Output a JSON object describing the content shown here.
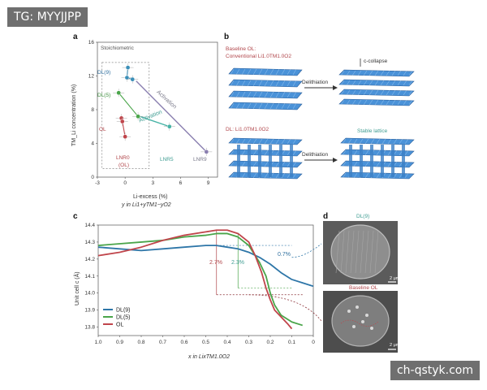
{
  "watermark_top": "TG: MYYJJPP",
  "watermark_bottom": "ch-qstyk.com",
  "panel_a": {
    "label": "a",
    "stoich_label": "Stoichiometric",
    "ylabel": "TM_Li concentration (%)",
    "xlabel": "Li-excess (%)",
    "xlabel2": "y in Li1+yTM1−yO2",
    "activation_1": "Activation",
    "activation_2": "Activation",
    "points": {
      "dl9": "DL(9)",
      "dl5": "DL(5)",
      "ol": "OL",
      "lnr0": "LNR0",
      "lnr0_sub": "(OL)",
      "lnr5": "LNR5",
      "lnr9": "LNR9"
    }
  },
  "panel_b": {
    "label": "b",
    "top_title1": "Baseline OL:",
    "top_title2": "Conventional Li1.0TM1.0O2",
    "delith_top": "Delithiation",
    "c_collapse": "c-collapse",
    "bottom_title": "DL: Li1.0TM1.0O2",
    "delith_bottom": "Delithiation",
    "stable": "Stable lattice"
  },
  "panel_c": {
    "label": "c",
    "ylabel": "Unit cell c (Å)",
    "xlabel": "x in LixTM1.0O2",
    "ann_27": "2.7%",
    "ann_23": "2.3%",
    "ann_07": "0.7%"
  },
  "panel_d": {
    "label": "d",
    "top_label": "DL(9)",
    "bottom_label": "Baseline OL",
    "scale_top": "2 μm",
    "scale_bottom": "2 μm"
  },
  "chart_data": [
    {
      "type": "scatter",
      "title": "",
      "xlabel": "Li-excess (%)",
      "ylabel": "TM_Li concentration (%)",
      "xlim": [
        -3,
        10
      ],
      "ylim": [
        0,
        16
      ],
      "xticks": [
        -3,
        0,
        3,
        6,
        9
      ],
      "yticks": [
        0,
        4,
        8,
        12,
        16
      ],
      "series": [
        {
          "name": "DL(9)",
          "color": "#3b8fb8",
          "points": [
            [
              0.3,
              13.0
            ],
            [
              0.2,
              11.8
            ],
            [
              0.8,
              11.6
            ]
          ]
        },
        {
          "name": "DL(5)",
          "color": "#4aa54a",
          "points": [
            [
              -0.7,
              10.0
            ],
            [
              1.4,
              7.2
            ]
          ]
        },
        {
          "name": "OL",
          "color": "#c0454b",
          "points": [
            [
              -0.4,
              7.0
            ],
            [
              -0.3,
              6.6
            ],
            [
              0.0,
              4.8
            ]
          ]
        },
        {
          "name": "LNR5",
          "color": "#47b3a6",
          "points": [
            [
              4.8,
              6.0
            ]
          ]
        },
        {
          "name": "LNR9",
          "color": "#8a7fb0",
          "points": [
            [
              8.8,
              3.0
            ]
          ]
        }
      ]
    },
    {
      "type": "line",
      "title": "",
      "xlabel": "x in LixTM1.0O2",
      "ylabel": "Unit cell c (Å)",
      "xlim": [
        1.0,
        0.0
      ],
      "ylim": [
        13.75,
        14.4
      ],
      "xticks": [
        1.0,
        0.9,
        0.8,
        0.7,
        0.6,
        0.5,
        0.4,
        0.3,
        0.2,
        0.1,
        0
      ],
      "yticks": [
        13.8,
        13.9,
        14.0,
        14.1,
        14.2,
        14.3,
        14.4
      ],
      "legend": "bottom-left",
      "series": [
        {
          "name": "DL(9)",
          "color": "#2e76a8",
          "x": [
            1.0,
            0.9,
            0.8,
            0.7,
            0.6,
            0.5,
            0.45,
            0.4,
            0.35,
            0.3,
            0.25,
            0.2,
            0.15,
            0.1,
            0.05,
            0.0
          ],
          "y": [
            14.27,
            14.26,
            14.25,
            14.26,
            14.27,
            14.28,
            14.28,
            14.27,
            14.26,
            14.24,
            14.21,
            14.17,
            14.12,
            14.08,
            14.06,
            14.04
          ]
        },
        {
          "name": "DL(5)",
          "color": "#4aa54a",
          "x": [
            1.0,
            0.9,
            0.8,
            0.7,
            0.6,
            0.5,
            0.45,
            0.4,
            0.35,
            0.3,
            0.25,
            0.22,
            0.2,
            0.18,
            0.15,
            0.1,
            0.05
          ],
          "y": [
            14.28,
            14.29,
            14.3,
            14.31,
            14.33,
            14.34,
            14.35,
            14.35,
            14.33,
            14.28,
            14.18,
            14.1,
            14.0,
            13.93,
            13.87,
            13.83,
            13.81
          ]
        },
        {
          "name": "OL",
          "color": "#c0454b",
          "x": [
            1.0,
            0.9,
            0.8,
            0.7,
            0.6,
            0.5,
            0.45,
            0.4,
            0.35,
            0.3,
            0.27,
            0.24,
            0.22,
            0.2,
            0.18,
            0.15,
            0.12,
            0.1
          ],
          "y": [
            14.22,
            14.24,
            14.27,
            14.31,
            14.34,
            14.36,
            14.37,
            14.37,
            14.35,
            14.3,
            14.22,
            14.12,
            14.03,
            13.96,
            13.9,
            13.86,
            13.82,
            13.79
          ]
        }
      ]
    }
  ]
}
